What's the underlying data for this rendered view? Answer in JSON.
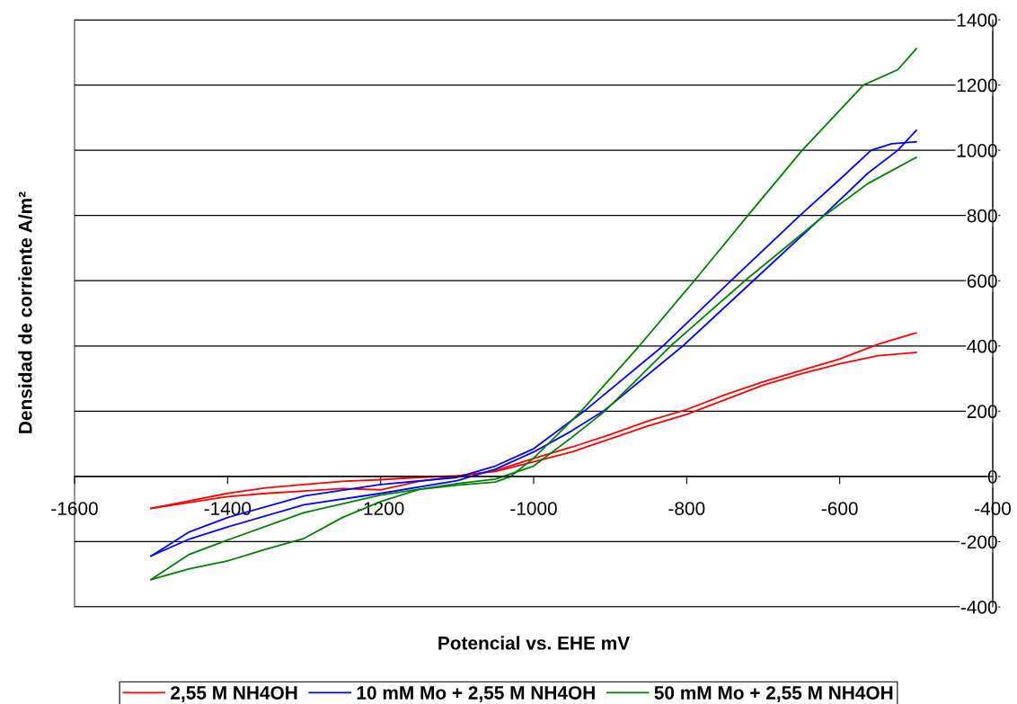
{
  "chart_data": {
    "type": "line",
    "xlabel": "Potencial vs. EHE mV",
    "ylabel": "Densidad de corriente A/m²",
    "xlim": [
      -1600,
      -400
    ],
    "xticks": [
      -1600,
      -1400,
      -1200,
      -1000,
      -800,
      -600,
      -400
    ],
    "ylim": [
      -400,
      1400
    ],
    "yticks": [
      -400,
      -200,
      0,
      200,
      400,
      600,
      800,
      1000,
      1200,
      1400
    ],
    "grid": "y",
    "legend": "bottom",
    "marker": "none",
    "line_style": "solid",
    "series": [
      {
        "name": "2,55 M NH4OH",
        "color": "#ff0000",
        "x": [
          -1500,
          -1450,
          -1400,
          -1350,
          -1300,
          -1250,
          -1200,
          -1150,
          -1100,
          -1050,
          -1000,
          -950,
          -900,
          -850,
          -800,
          -750,
          -700,
          -650,
          -600,
          -550,
          -500
        ],
        "values": [
          -98,
          -75,
          -52,
          -35,
          -25,
          -15,
          -10,
          -3,
          2,
          15,
          45,
          75,
          115,
          155,
          190,
          235,
          280,
          315,
          345,
          370,
          380
        ]
      },
      {
        "color": "#ff0000",
        "x": [
          -1500,
          -1450,
          -1400,
          -1350,
          -1300,
          -1250,
          -1200,
          -1150,
          -1100,
          -1050,
          -1000,
          -950,
          -900,
          -850,
          -800,
          -750,
          -700,
          -650,
          -600,
          -550,
          -500
        ],
        "values": [
          -98,
          -80,
          -62,
          -52,
          -45,
          -37,
          -41,
          -15,
          0,
          18,
          55,
          90,
          128,
          170,
          205,
          250,
          290,
          325,
          360,
          405,
          440
        ]
      },
      {
        "name": "10 mM Mo + 2,55 M NH4OH",
        "color": "#0000ff",
        "x": [
          -1500,
          -1450,
          -1400,
          -1300,
          -1200,
          -1100,
          -1050,
          -1000,
          -934,
          -831,
          -742,
          -652,
          -602,
          -559,
          -532,
          -500
        ],
        "values": [
          -244,
          -170,
          -126,
          -60,
          -25,
          -3,
          32,
          85,
          200,
          400,
          600,
          800,
          906,
          1000,
          1020,
          1026
        ]
      },
      {
        "color": "#0000ff",
        "x": [
          -1500,
          -1450,
          -1400,
          -1300,
          -1200,
          -1100,
          -1050,
          -1000,
          -950,
          -909,
          -805,
          -713,
          -621,
          -602,
          -563,
          -524,
          -500
        ],
        "values": [
          -244,
          -192,
          -155,
          -87,
          -52,
          -13,
          22,
          75,
          140,
          200,
          400,
          600,
          800,
          843,
          930,
          1000,
          1061
        ]
      },
      {
        "name": "50 mM Mo + 2,55 M NH4OH",
        "color": "#008000",
        "x": [
          -1500,
          -1450,
          -1400,
          -1350,
          -1300,
          -1250,
          -1200,
          -1150,
          -1100,
          -1050,
          -1030,
          -1000,
          -938,
          -862,
          -790,
          -720,
          -649,
          -569,
          -524,
          -500
        ],
        "values": [
          -316,
          -283,
          -259,
          -223,
          -190,
          -126,
          -77,
          -40,
          -27,
          -17,
          0,
          56,
          200,
          400,
          600,
          800,
          1000,
          1200,
          1247,
          1311
        ]
      },
      {
        "color": "#008000",
        "x": [
          -1500,
          -1450,
          -1400,
          -1300,
          -1200,
          -1100,
          -1050,
          -1000,
          -950,
          -907,
          -821,
          -724,
          -620,
          -563,
          -500
        ],
        "values": [
          -316,
          -239,
          -195,
          -111,
          -57,
          -22,
          -8,
          32,
          120,
          200,
          400,
          600,
          800,
          898,
          978
        ]
      }
    ]
  }
}
